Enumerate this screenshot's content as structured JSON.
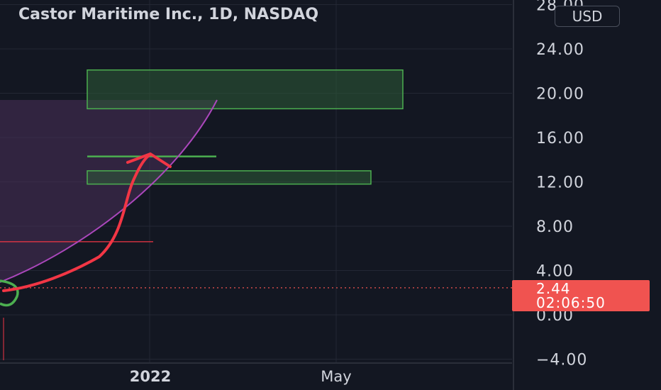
{
  "header": {
    "title": "Castor Maritime Inc., 1D, NASDAQ",
    "currency": "USD"
  },
  "price_label": {
    "value": "2.44",
    "countdown": "02:06:50"
  },
  "colors": {
    "background": "#131722",
    "grid": "#2a2e39",
    "axis_text": "#d1d4dc",
    "zone_border": "#4caf50",
    "zone_fill": "#2e5b36",
    "curve": "#ab47bc",
    "curve_fill": "#4a2f5a",
    "arrow": "#f23645",
    "price": "#f05350"
  },
  "chart_data": {
    "type": "line",
    "title": "Castor Maritime Inc., 1D, NASDAQ",
    "xlabel": "",
    "ylabel": "",
    "ylim": [
      -4,
      28
    ],
    "y_ticks": [
      "28.00",
      "24.00",
      "20.00",
      "16.00",
      "12.00",
      "8.00",
      "4.00",
      "0.00",
      "−4.00"
    ],
    "y_tick_values": [
      28,
      24,
      20,
      16,
      12,
      8,
      4,
      0,
      -4
    ],
    "x_ticks": [
      {
        "label": "2022",
        "bold": true
      },
      {
        "label": "May",
        "bold": false
      }
    ],
    "grid": true,
    "last_price": 2.44,
    "annotations": {
      "zones": [
        {
          "name": "upper-zone",
          "y_low": 18.6,
          "y_high": 22.1
        },
        {
          "name": "lower-zone",
          "y_low": 11.8,
          "y_high": 13.0
        }
      ],
      "target_line": 14.3,
      "support_line": 6.6
    }
  }
}
